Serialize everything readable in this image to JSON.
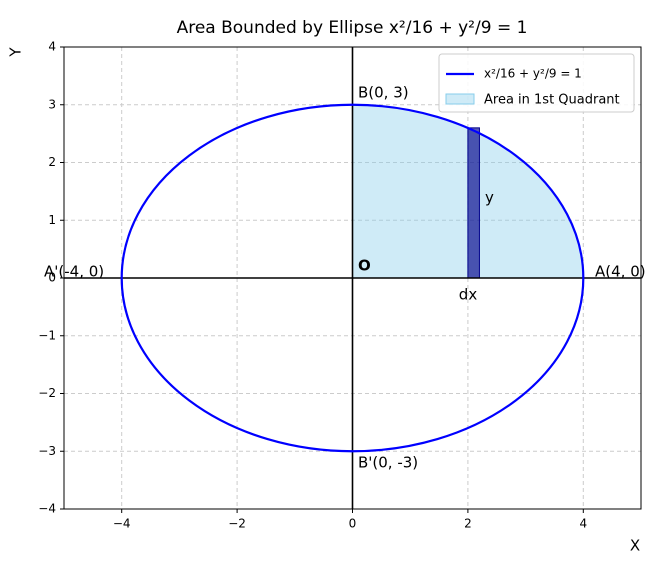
{
  "chart_data": {
    "type": "area-diagram",
    "title": "Area Bounded by Ellipse x²/16 + y²/9 = 1",
    "x_label": "X",
    "y_label": "Y",
    "xlim": [
      -5,
      5
    ],
    "ylim": [
      -4,
      4
    ],
    "xticks": [
      {
        "value": -4,
        "label": "−4"
      },
      {
        "value": -2,
        "label": "−2"
      },
      0,
      2,
      4
    ],
    "yticks": [
      {
        "value": -4,
        "label": "−4"
      },
      {
        "value": -3,
        "label": "−3"
      },
      {
        "value": -2,
        "label": "−2"
      },
      {
        "value": -1,
        "label": "−1"
      },
      0,
      1,
      2,
      3,
      4
    ],
    "grid": true,
    "ellipse": {
      "name": "x²/16 + y²/9 = 1",
      "a": 4,
      "b": 3,
      "color": "#0000ff"
    },
    "area": {
      "name": "Area in 1st Quadrant",
      "color": "#87ceeb"
    },
    "strip": {
      "x": [
        2,
        2.2
      ],
      "height": 2.6,
      "color": "#00008b"
    },
    "annotations": [
      "B(0, 3)",
      "A(4, 0)",
      "A'(-4, 0)",
      "B'(0, -3)",
      "O",
      "y",
      "dx"
    ],
    "legend_loc": "upper right"
  }
}
